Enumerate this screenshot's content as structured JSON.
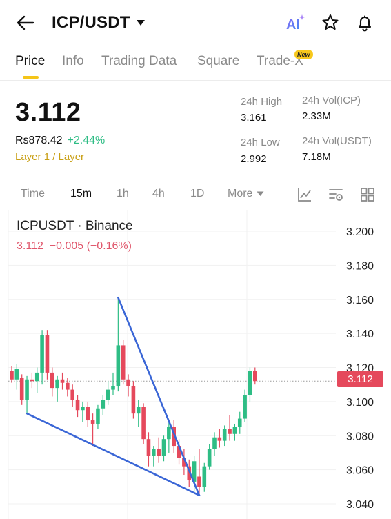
{
  "header": {
    "back_icon": "arrow-left-icon",
    "pair": "ICP/USDT",
    "dropdown_icon": "caret-down-icon",
    "ai_label": "AI",
    "star_icon": "star-icon",
    "bell_icon": "bell-icon"
  },
  "tabs": [
    {
      "label": "Price",
      "active": true
    },
    {
      "label": "Info",
      "active": false
    },
    {
      "label": "Trading Data",
      "active": false
    },
    {
      "label": "Square",
      "active": false
    },
    {
      "label": "Trade-X",
      "active": false
    }
  ],
  "badge_new": "New",
  "price": {
    "last": "3.112",
    "fiat": "Rs878.42",
    "change": "+2.44%",
    "category": "Layer 1 / Layer"
  },
  "stats": {
    "high_label": "24h High",
    "high_value": "3.161",
    "low_label": "24h Low",
    "low_value": "2.992",
    "vol_icp_label": "24h Vol(ICP)",
    "vol_icp_value": "2.33M",
    "vol_usdt_label": "24h Vol(USDT)",
    "vol_usdt_value": "7.18M"
  },
  "intervals": [
    {
      "label": "Time",
      "active": false
    },
    {
      "label": "15m",
      "active": true
    },
    {
      "label": "1h",
      "active": false
    },
    {
      "label": "4h",
      "active": false
    },
    {
      "label": "1D",
      "active": false
    },
    {
      "label": "More",
      "active": false
    }
  ],
  "chart_tools": [
    "line-chart-icon",
    "indicator-settings-icon",
    "grid-layout-icon"
  ],
  "colors": {
    "up": "#2ebd85",
    "down": "#e5495c",
    "accent": "#f5c518",
    "trendline": "#3a66d6"
  },
  "chart_data": {
    "type": "candlestick",
    "title": "ICPUSDT · Binance",
    "quote_price": "3.112",
    "quote_change": "−0.005 (−0.16%)",
    "y_ticks": [
      "3.200",
      "3.180",
      "3.160",
      "3.140",
      "3.120",
      "3.100",
      "3.080",
      "3.060",
      "3.040"
    ],
    "ylim": [
      3.036,
      3.206
    ],
    "current_price_label": "3.112",
    "current_price": 3.112,
    "candles": [
      [
        3.118,
        3.121,
        3.111,
        3.113
      ],
      [
        3.113,
        3.122,
        3.107,
        3.119
      ],
      [
        3.114,
        3.116,
        3.098,
        3.101
      ],
      [
        3.101,
        3.115,
        3.093,
        3.113
      ],
      [
        3.113,
        3.117,
        3.108,
        3.112
      ],
      [
        3.112,
        3.12,
        3.105,
        3.117
      ],
      [
        3.117,
        3.142,
        3.11,
        3.139
      ],
      [
        3.139,
        3.142,
        3.113,
        3.117
      ],
      [
        3.117,
        3.12,
        3.103,
        3.108
      ],
      [
        3.108,
        3.115,
        3.1,
        3.113
      ],
      [
        3.113,
        3.117,
        3.107,
        3.111
      ],
      [
        3.111,
        3.114,
        3.103,
        3.107
      ],
      [
        3.107,
        3.11,
        3.097,
        3.101
      ],
      [
        3.101,
        3.104,
        3.091,
        3.095
      ],
      [
        3.095,
        3.1,
        3.088,
        3.097
      ],
      [
        3.097,
        3.1,
        3.085,
        3.089
      ],
      [
        3.089,
        3.093,
        3.074,
        3.087
      ],
      [
        3.087,
        3.098,
        3.084,
        3.096
      ],
      [
        3.096,
        3.104,
        3.092,
        3.101
      ],
      [
        3.101,
        3.112,
        3.098,
        3.107
      ],
      [
        3.107,
        3.117,
        3.104,
        3.109
      ],
      [
        3.109,
        3.161,
        3.106,
        3.133
      ],
      [
        3.133,
        3.136,
        3.11,
        3.113
      ],
      [
        3.113,
        3.116,
        3.103,
        3.109
      ],
      [
        3.109,
        3.112,
        3.09,
        3.093
      ],
      [
        3.093,
        3.101,
        3.085,
        3.097
      ],
      [
        3.097,
        3.099,
        3.075,
        3.078
      ],
      [
        3.078,
        3.082,
        3.062,
        3.068
      ],
      [
        3.068,
        3.074,
        3.062,
        3.072
      ],
      [
        3.072,
        3.079,
        3.064,
        3.068
      ],
      [
        3.068,
        3.08,
        3.065,
        3.078
      ],
      [
        3.078,
        3.089,
        3.07,
        3.085
      ],
      [
        3.085,
        3.089,
        3.07,
        3.074
      ],
      [
        3.074,
        3.078,
        3.063,
        3.067
      ],
      [
        3.067,
        3.072,
        3.057,
        3.062
      ],
      [
        3.062,
        3.066,
        3.05,
        3.054
      ],
      [
        3.053,
        3.068,
        3.047,
        3.065
      ],
      [
        3.056,
        3.072,
        3.046,
        3.05
      ],
      [
        3.05,
        3.064,
        3.047,
        3.062
      ],
      [
        3.062,
        3.075,
        3.06,
        3.072
      ],
      [
        3.072,
        3.082,
        3.068,
        3.079
      ],
      [
        3.079,
        3.084,
        3.073,
        3.077
      ],
      [
        3.077,
        3.086,
        3.074,
        3.084
      ],
      [
        3.084,
        3.092,
        3.077,
        3.081
      ],
      [
        3.081,
        3.087,
        3.077,
        3.085
      ],
      [
        3.085,
        3.094,
        3.081,
        3.09
      ],
      [
        3.09,
        3.107,
        3.088,
        3.104
      ],
      [
        3.104,
        3.12,
        3.1,
        3.118
      ],
      [
        3.118,
        3.12,
        3.11,
        3.112
      ]
    ],
    "annotations": [
      {
        "type": "trendline",
        "from": {
          "index": 21,
          "price": 3.161
        },
        "to": {
          "index": 37,
          "price": 3.045
        }
      },
      {
        "type": "trendline",
        "from": {
          "index": 3,
          "price": 3.093
        },
        "to": {
          "index": 37,
          "price": 3.045
        }
      }
    ]
  }
}
